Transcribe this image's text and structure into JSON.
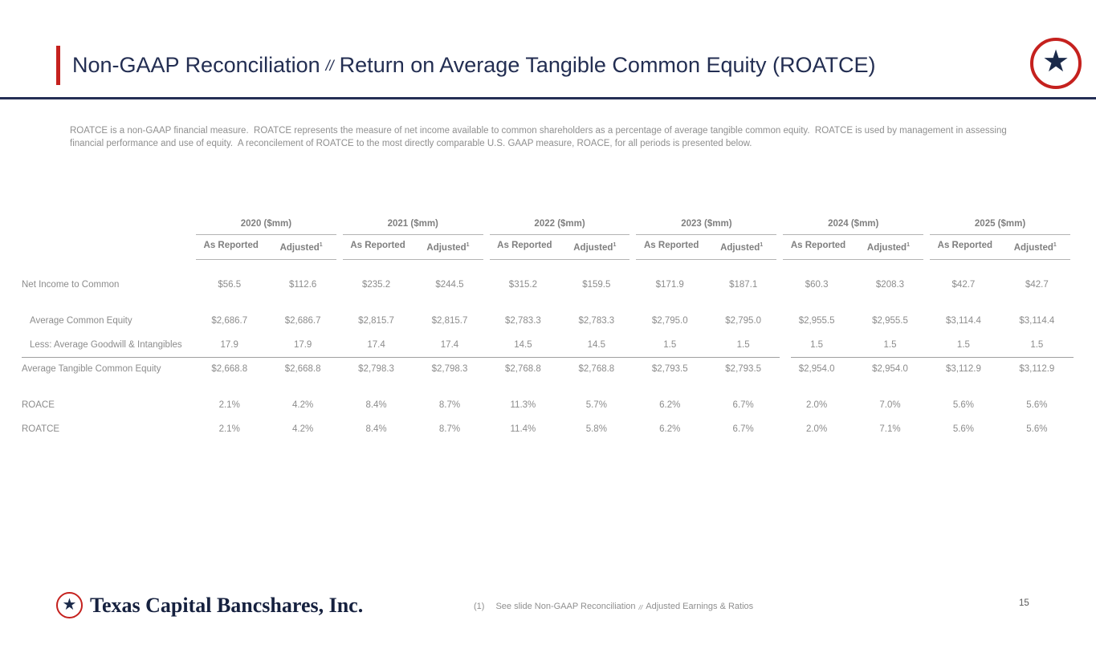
{
  "header": {
    "title_main": "Non-GAAP Reconciliation",
    "title_sep": "//",
    "title_rest": "Return on Average Tangible Common Equity (ROATCE)"
  },
  "intro": "ROATCE is a non-GAAP financial measure.  ROATCE represents the measure of net income available to common shareholders as a percentage of average tangible common equity.  ROATCE is used by management in assessing financial performance and use of equity.  A reconcilement of ROATCE to the most directly comparable U.S. GAAP measure, ROACE, for all periods is presented below.",
  "table": {
    "year_groups": [
      "2020 ($mm)",
      "2021 ($mm)",
      "2022 ($mm)",
      "2023 ($mm)",
      "2024 ($mm)",
      "2025 ($mm)"
    ],
    "sub_headers": {
      "first": "As Reported",
      "second": "Adjusted",
      "second_sup": "1"
    },
    "rows": [
      {
        "label": "Net Income to Common",
        "indent": false,
        "spacer_before": false,
        "rule_above": false,
        "values": [
          "$56.5",
          "$112.6",
          "$235.2",
          "$244.5",
          "$315.2",
          "$159.5",
          "$171.9",
          "$187.1",
          "$60.3",
          "$208.3",
          "$42.7",
          "$42.7"
        ]
      },
      {
        "label": "Average Common Equity",
        "indent": true,
        "spacer_before": true,
        "rule_above": false,
        "values": [
          "$2,686.7",
          "$2,686.7",
          "$2,815.7",
          "$2,815.7",
          "$2,783.3",
          "$2,783.3",
          "$2,795.0",
          "$2,795.0",
          "$2,955.5",
          "$2,955.5",
          "$3,114.4",
          "$3,114.4"
        ]
      },
      {
        "label": "Less: Average Goodwill & Intangibles",
        "indent": true,
        "spacer_before": false,
        "rule_above": false,
        "values": [
          "17.9",
          "17.9",
          "17.4",
          "17.4",
          "14.5",
          "14.5",
          "1.5",
          "1.5",
          "1.5",
          "1.5",
          "1.5",
          "1.5"
        ]
      },
      {
        "label": "Average Tangible Common Equity",
        "indent": false,
        "spacer_before": false,
        "rule_above": true,
        "values": [
          "$2,668.8",
          "$2,668.8",
          "$2,798.3",
          "$2,798.3",
          "$2,768.8",
          "$2,768.8",
          "$2,793.5",
          "$2,793.5",
          "$2,954.0",
          "$2,954.0",
          "$3,112.9",
          "$3,112.9"
        ]
      },
      {
        "label": "ROACE",
        "indent": false,
        "spacer_before": true,
        "rule_above": false,
        "values": [
          "2.1%",
          "4.2%",
          "8.4%",
          "8.7%",
          "11.3%",
          "5.7%",
          "6.2%",
          "6.7%",
          "2.0%",
          "7.0%",
          "5.6%",
          "5.6%"
        ]
      },
      {
        "label": "ROATCE",
        "indent": false,
        "spacer_before": false,
        "rule_above": false,
        "values": [
          "2.1%",
          "4.2%",
          "8.4%",
          "8.7%",
          "11.4%",
          "5.8%",
          "6.2%",
          "6.7%",
          "2.0%",
          "7.1%",
          "5.6%",
          "5.6%"
        ]
      }
    ]
  },
  "footer": {
    "logo_text": "Texas Capital Bancshares, Inc.",
    "footnote_marker": "(1)",
    "footnote_part1": "See slide Non-GAAP Reconciliation",
    "footnote_sep": "//",
    "footnote_part2": "Adjusted Earnings & Ratios",
    "page_number": "15"
  },
  "icons": {
    "star": "★"
  },
  "colors": {
    "accent_red": "#c5211e",
    "navy": "#232e52",
    "text_gray": "#8c8c8c"
  }
}
